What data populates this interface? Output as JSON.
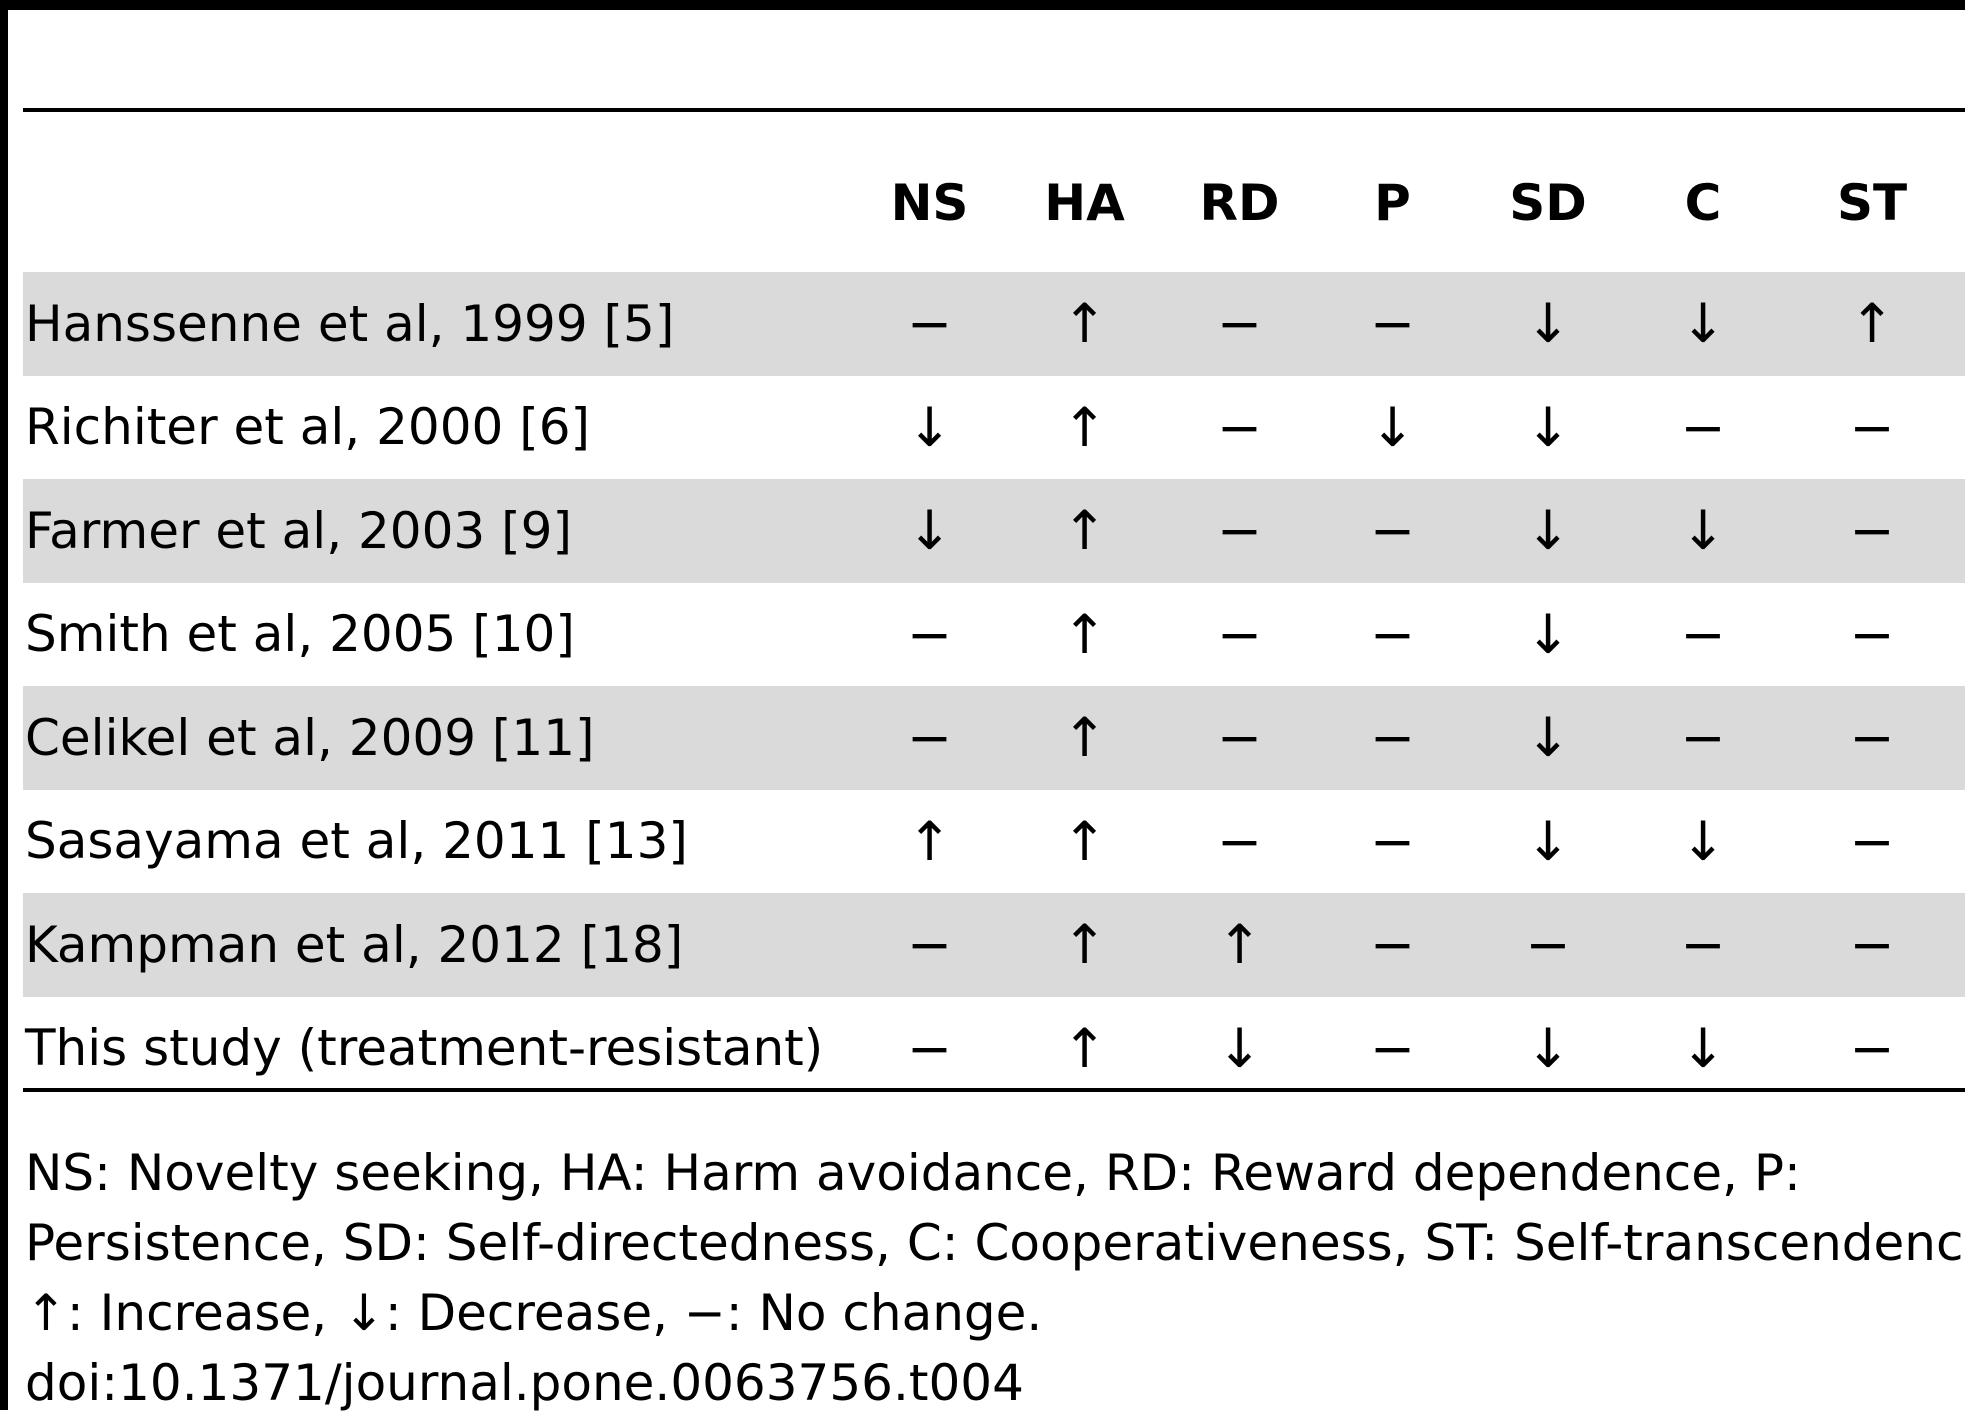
{
  "table": {
    "columns": [
      "",
      "NS",
      "HA",
      "RD",
      "P",
      "SD",
      "C",
      "ST"
    ],
    "rows": [
      {
        "study": "Hanssenne et al, 1999 [5]",
        "values": [
          "−",
          "↑",
          "−",
          "−",
          "↓",
          "↓",
          "↑"
        ],
        "shaded": true
      },
      {
        "study": "Richiter et al, 2000 [6]",
        "values": [
          "↓",
          "↑",
          "−",
          "↓",
          "↓",
          "−",
          "−"
        ],
        "shaded": false
      },
      {
        "study": "Farmer et al, 2003 [9]",
        "values": [
          "↓",
          "↑",
          "−",
          "−",
          "↓",
          "↓",
          "−"
        ],
        "shaded": true
      },
      {
        "study": "Smith et al, 2005 [10]",
        "values": [
          "−",
          "↑",
          "−",
          "−",
          "↓",
          "−",
          "−"
        ],
        "shaded": false
      },
      {
        "study": "Celikel et al, 2009 [11]",
        "values": [
          "−",
          "↑",
          "−",
          "−",
          "↓",
          "−",
          "−"
        ],
        "shaded": true
      },
      {
        "study": "Sasayama et al, 2011 [13]",
        "values": [
          "↑",
          "↑",
          "−",
          "−",
          "↓",
          "↓",
          "−"
        ],
        "shaded": false
      },
      {
        "study": "Kampman et al, 2012 [18]",
        "values": [
          "−",
          "↑",
          "↑",
          "−",
          "−",
          "−",
          "−"
        ],
        "shaded": true
      },
      {
        "study": "This study (treatment-resistant)",
        "values": [
          "−",
          "↑",
          "↓",
          "−",
          "↓",
          "↓",
          "−"
        ],
        "shaded": false
      }
    ]
  },
  "footnote": {
    "line1": "NS: Novelty seeking, HA: Harm avoidance, RD: Reward dependence, P:",
    "line2": "Persistence, SD: Self-directedness, C: Cooperativeness, ST: Self-transcendence.",
    "line3": "↑: Increase, ↓: Decrease, −: No change.",
    "doi": "doi:10.1371/journal.pone.0063756.t004"
  },
  "colors": {
    "shaded_row": "#dadada",
    "rule": "#000000"
  }
}
